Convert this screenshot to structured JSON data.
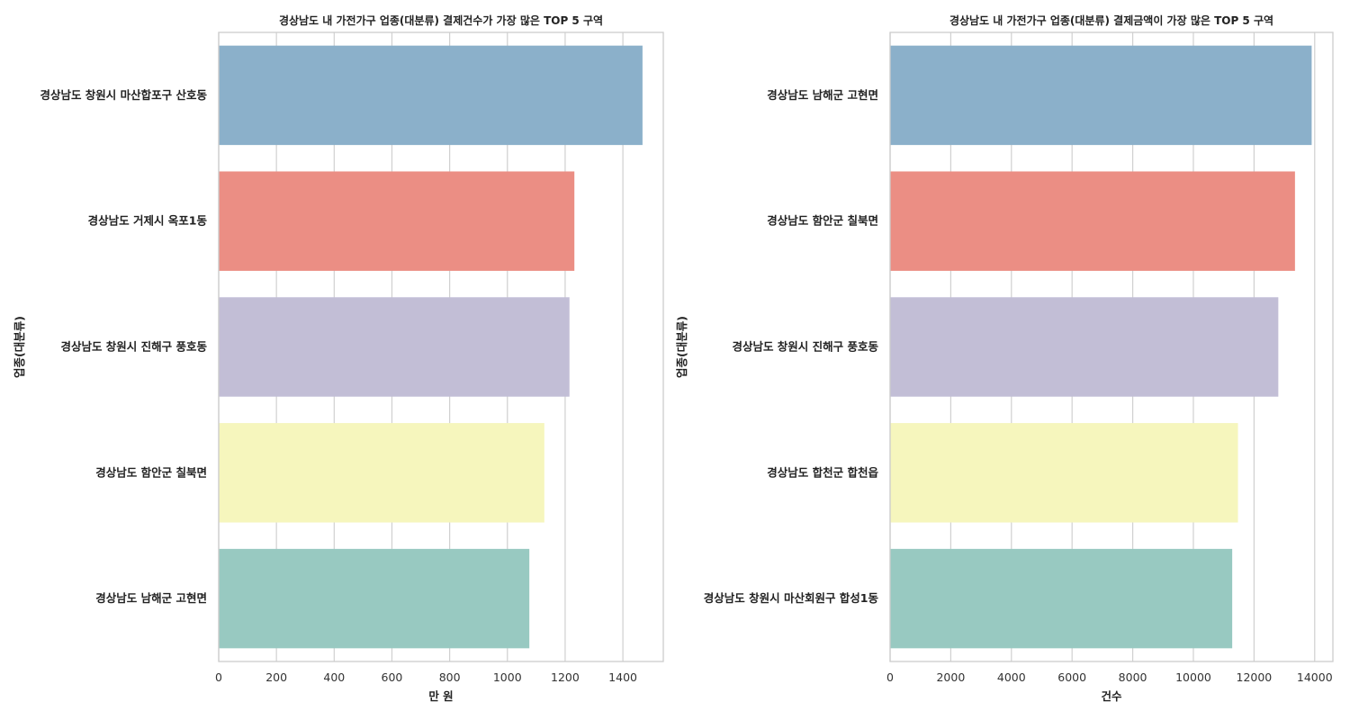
{
  "chart_data": [
    {
      "type": "bar",
      "orientation": "horizontal",
      "title": "경상남도 내 가전가구 업종(대분류) 결제건수가 가장 많은 TOP 5 구역",
      "xlabel": "만 원",
      "ylabel": "업종(대분류)",
      "categories": [
        "경상남도 창원시 마산합포구 산호동",
        "경상남도 거제시 옥포1동",
        "경상남도 창원시 진해구 풍호동",
        "경상남도 함안군 칠북면",
        "경상남도 남해군 고현면"
      ],
      "values": [
        1468,
        1232,
        1215,
        1128,
        1076
      ],
      "xlim": [
        0,
        1540
      ],
      "xticks": [
        "0",
        "200",
        "400",
        "600",
        "800",
        "1000",
        "1200",
        "1400"
      ],
      "xtick_values": [
        0,
        200,
        400,
        600,
        800,
        1000,
        1200,
        1400
      ],
      "colors": [
        "#8bb0ca",
        "#eb8e84",
        "#c2bed6",
        "#f6f6bd",
        "#98c9c1"
      ],
      "grid": true
    },
    {
      "type": "bar",
      "orientation": "horizontal",
      "title": "경상남도 내 가전가구 업종(대분류) 결제금액이 가장 많은 TOP 5 구역",
      "xlabel": "건수",
      "ylabel": "업종(대분류)",
      "categories": [
        "경상남도 남해군 고현면",
        "경상남도 함안군 칠북면",
        "경상남도 창원시 진해구 풍호동",
        "경상남도 합천군 합천읍",
        "경상남도 창원시 마산회원구 합성1동"
      ],
      "values": [
        13900,
        13350,
        12800,
        11470,
        11280
      ],
      "xlim": [
        0,
        14600
      ],
      "xticks": [
        "0",
        "2000",
        "4000",
        "6000",
        "8000",
        "10000",
        "12000",
        "14000"
      ],
      "xtick_values": [
        0,
        2000,
        4000,
        6000,
        8000,
        10000,
        12000,
        14000
      ],
      "colors": [
        "#8bb0ca",
        "#eb8e84",
        "#c2bed6",
        "#f6f6bd",
        "#98c9c1"
      ],
      "grid": true
    }
  ]
}
